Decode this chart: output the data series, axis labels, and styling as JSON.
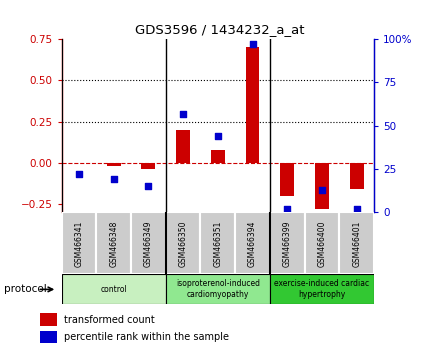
{
  "title": "GDS3596 / 1434232_a_at",
  "samples": [
    "GSM466341",
    "GSM466348",
    "GSM466349",
    "GSM466350",
    "GSM466351",
    "GSM466394",
    "GSM466399",
    "GSM466400",
    "GSM466401"
  ],
  "transformed_count": [
    0.0,
    -0.02,
    -0.04,
    0.2,
    0.075,
    0.7,
    -0.2,
    -0.28,
    -0.16
  ],
  "percentile_rank": [
    22,
    19,
    15,
    57,
    44,
    97,
    2,
    13,
    2
  ],
  "groups": [
    {
      "label": "control",
      "start": 0,
      "end": 3,
      "color": "#c8f0c0"
    },
    {
      "label": "isoproterenol-induced\ncardiomyopathy",
      "start": 3,
      "end": 6,
      "color": "#90e890"
    },
    {
      "label": "exercise-induced cardiac\nhypertrophy",
      "start": 6,
      "end": 9,
      "color": "#32c832"
    }
  ],
  "ylim_left": [
    -0.3,
    0.75
  ],
  "ylim_right": [
    0,
    100
  ],
  "yticks_left": [
    -0.25,
    0.0,
    0.25,
    0.5,
    0.75
  ],
  "yticks_right": [
    0,
    25,
    50,
    75,
    100
  ],
  "bar_color": "#cc0000",
  "scatter_color": "#0000cc",
  "hline_color": "#cc0000",
  "dotted_color": "#000000",
  "bg_color": "#ffffff",
  "sample_bg_color": "#cccccc",
  "bar_width": 0.4,
  "protocol_label": "protocol",
  "legend1": "transformed count",
  "legend2": "percentile rank within the sample",
  "group_sep_color": "#000000"
}
